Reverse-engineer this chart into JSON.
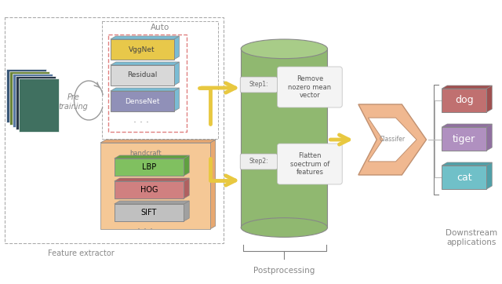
{
  "bg_color": "#ffffff",
  "vggnet_color": "#e8c84a",
  "residual_color": "#d8d8d8",
  "densenet_color": "#9090b8",
  "cube_side_color": "#7abcd4",
  "handcraft_bg": "#f5c896",
  "handcraft_side": "#e8a870",
  "lbp_color": "#80c060",
  "lbp_side": "#60a040",
  "hog_color": "#d08080",
  "hog_side": "#b06060",
  "sift_color": "#c0c0c0",
  "sift_side": "#a0a0a0",
  "cylinder_body": "#90b870",
  "cylinder_top": "#a8cc88",
  "step_bg": "#eeeeee",
  "content_bg": "#f4f4f4",
  "classifier_color": "#f0b890",
  "dog_face": "#c07070",
  "dog_side": "#a05050",
  "tiger_face": "#b090c0",
  "tiger_side": "#9070a0",
  "cat_face": "#70c0c8",
  "cat_side": "#50a0a8",
  "arrow_color": "#e8c840",
  "dashed_color": "#aaaaaa",
  "auto_border": "#e08080",
  "outer_border": "#aaaaaa",
  "text_gray": "#888888",
  "labels": {
    "auto": "Auto",
    "pre_training": "Pre\ntraining",
    "handcraft": "handcraft",
    "vggnet": "VggNet",
    "residual": "Residual",
    "densenet": "DenseNet",
    "lbp": "LBP",
    "hog": "HOG",
    "sift": "SIFT",
    "step1": "Step1:",
    "step2": "Step2:",
    "remove": "Remove\nnozero mean\nvector",
    "flatten": "Flatten\nsoectrum of\nfeatures",
    "classifer": "Classifer",
    "dog": "dog",
    "tiger": "tiger",
    "cat": "cat",
    "postprocessing": "Postprocessing",
    "feature_extractor": "Feature extractor",
    "downstream": "Downstream\napplications"
  }
}
